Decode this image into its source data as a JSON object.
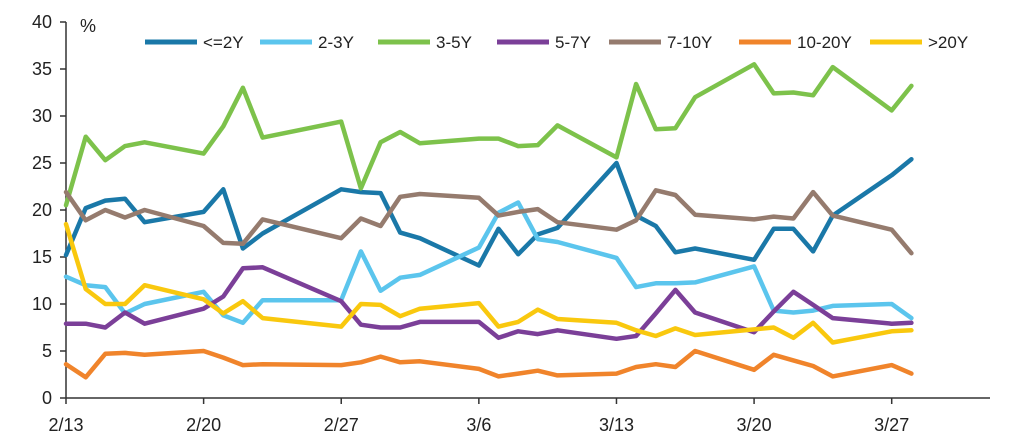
{
  "chart_data": {
    "type": "line",
    "title": "",
    "xlabel": "",
    "ylabel": "",
    "unit": "%",
    "ylim": [
      0,
      40
    ],
    "yticks": [
      0,
      5,
      10,
      15,
      20,
      25,
      30,
      35,
      40
    ],
    "x_range": [
      0,
      47
    ],
    "x_ticks": [
      {
        "x": 0,
        "label": "2/13"
      },
      {
        "x": 7,
        "label": "2/20"
      },
      {
        "x": 14,
        "label": "2/27"
      },
      {
        "x": 21,
        "label": "3/6"
      },
      {
        "x": 28,
        "label": "3/13"
      },
      {
        "x": 35,
        "label": "3/20"
      },
      {
        "x": 42,
        "label": "3/27"
      }
    ],
    "legend_position": "top",
    "grid": false,
    "series": [
      {
        "name": "<=2Y",
        "color": "#1a78a8",
        "x": [
          0,
          1,
          2,
          3,
          4,
          7,
          8,
          9,
          10,
          14,
          15,
          16,
          17,
          18,
          21,
          22,
          23,
          24,
          25,
          28,
          29,
          30,
          31,
          32,
          35,
          36,
          37,
          38,
          39,
          42,
          43
        ],
        "y": [
          15.2,
          20.2,
          21.0,
          21.2,
          18.7,
          19.8,
          22.2,
          15.9,
          17.5,
          22.2,
          21.9,
          21.8,
          17.6,
          17.0,
          14.1,
          18.0,
          15.3,
          17.4,
          18.1,
          25.0,
          19.4,
          18.3,
          15.5,
          15.9,
          14.7,
          18.0,
          18.0,
          15.6,
          19.4,
          23.7,
          25.4
        ]
      },
      {
        "name": "2-3Y",
        "color": "#5bc5ed",
        "x": [
          0,
          1,
          2,
          3,
          4,
          7,
          8,
          9,
          10,
          14,
          15,
          16,
          17,
          18,
          21,
          22,
          23,
          24,
          25,
          28,
          29,
          30,
          31,
          32,
          35,
          36,
          37,
          38,
          39,
          42,
          43
        ],
        "y": [
          12.9,
          12.0,
          11.8,
          9.0,
          10.0,
          11.3,
          8.8,
          8.0,
          10.4,
          10.4,
          15.6,
          11.4,
          12.8,
          13.1,
          16.0,
          19.7,
          20.8,
          16.9,
          16.6,
          14.9,
          11.8,
          12.2,
          12.2,
          12.3,
          14.0,
          9.3,
          9.1,
          9.3,
          9.8,
          10.0,
          8.5
        ]
      },
      {
        "name": "3-5Y",
        "color": "#7dc24b",
        "x": [
          0,
          1,
          2,
          3,
          4,
          7,
          8,
          9,
          10,
          14,
          15,
          16,
          17,
          18,
          21,
          22,
          23,
          24,
          25,
          28,
          29,
          30,
          31,
          32,
          35,
          36,
          37,
          38,
          39,
          42,
          43
        ],
        "y": [
          20.5,
          27.8,
          25.3,
          26.8,
          27.2,
          26.0,
          28.9,
          33.0,
          27.7,
          29.4,
          22.3,
          27.2,
          28.3,
          27.1,
          27.6,
          27.6,
          26.8,
          26.9,
          29.0,
          25.6,
          33.4,
          28.6,
          28.7,
          32.0,
          35.5,
          32.4,
          32.5,
          32.2,
          35.2,
          30.6,
          33.2
        ]
      },
      {
        "name": "5-7Y",
        "color": "#7b3f98",
        "x": [
          0,
          1,
          2,
          3,
          4,
          7,
          8,
          9,
          10,
          14,
          15,
          16,
          17,
          18,
          21,
          22,
          23,
          24,
          25,
          28,
          29,
          30,
          31,
          32,
          35,
          36,
          37,
          38,
          39,
          42,
          43
        ],
        "y": [
          7.9,
          7.9,
          7.5,
          9.1,
          7.9,
          9.5,
          10.8,
          13.8,
          13.9,
          10.3,
          7.8,
          7.5,
          7.5,
          8.1,
          8.1,
          6.4,
          7.1,
          6.8,
          7.2,
          6.3,
          6.6,
          9.0,
          11.5,
          9.1,
          7.0,
          9.2,
          11.3,
          9.9,
          8.5,
          7.9,
          8.0
        ]
      },
      {
        "name": "7-10Y",
        "color": "#957b6e",
        "x": [
          0,
          1,
          2,
          3,
          4,
          7,
          8,
          9,
          10,
          14,
          15,
          16,
          17,
          18,
          21,
          22,
          23,
          24,
          25,
          28,
          29,
          30,
          31,
          32,
          35,
          36,
          37,
          38,
          39,
          42,
          43
        ],
        "y": [
          21.9,
          18.9,
          20.0,
          19.2,
          20.0,
          18.3,
          16.5,
          16.4,
          19.0,
          17.0,
          19.1,
          18.3,
          21.4,
          21.7,
          21.3,
          19.4,
          19.8,
          20.1,
          18.7,
          17.9,
          18.9,
          22.1,
          21.6,
          19.5,
          19.0,
          19.3,
          19.1,
          21.9,
          19.4,
          17.9,
          15.4
        ]
      },
      {
        "name": "10-20Y",
        "color": "#f0842b",
        "x": [
          0,
          1,
          2,
          3,
          4,
          7,
          8,
          9,
          10,
          14,
          15,
          16,
          17,
          18,
          21,
          22,
          23,
          24,
          25,
          28,
          29,
          30,
          31,
          32,
          35,
          36,
          37,
          38,
          39,
          42,
          43
        ],
        "y": [
          3.6,
          2.2,
          4.7,
          4.8,
          4.6,
          5.0,
          4.3,
          3.5,
          3.6,
          3.5,
          3.8,
          4.4,
          3.8,
          3.9,
          3.1,
          2.3,
          2.6,
          2.9,
          2.4,
          2.6,
          3.3,
          3.6,
          3.3,
          5.0,
          3.0,
          4.6,
          4.0,
          3.4,
          2.3,
          3.5,
          2.6
        ]
      },
      {
        "name": ">20Y",
        "color": "#f9c80e",
        "x": [
          0,
          1,
          2,
          3,
          4,
          7,
          8,
          9,
          10,
          14,
          15,
          16,
          17,
          18,
          21,
          22,
          23,
          24,
          25,
          28,
          29,
          30,
          31,
          32,
          35,
          36,
          37,
          38,
          39,
          42,
          43
        ],
        "y": [
          18.5,
          11.6,
          10.0,
          10.0,
          12.0,
          10.5,
          9.0,
          10.3,
          8.5,
          7.6,
          10.0,
          9.9,
          8.7,
          9.5,
          10.1,
          7.6,
          8.1,
          9.4,
          8.4,
          8.0,
          7.2,
          6.6,
          7.4,
          6.7,
          7.3,
          7.5,
          6.4,
          8.0,
          5.9,
          7.1,
          7.2
        ]
      }
    ]
  }
}
